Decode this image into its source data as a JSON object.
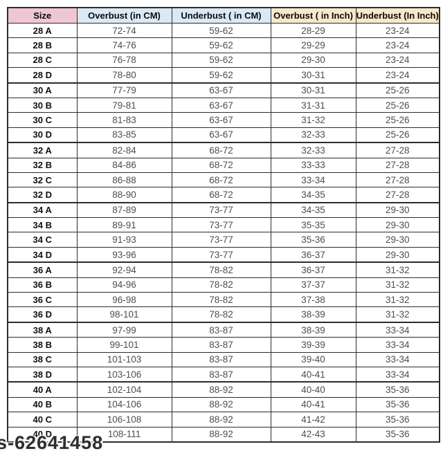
{
  "colors": {
    "header_size_bg": "#efc7d3",
    "header_cm_bg": "#dbe9f5",
    "header_inch_bg": "#f6e8ca",
    "border": "#2b2b2b",
    "data_text": "#4d4d4d"
  },
  "watermark": {
    "text": "s-62641458"
  },
  "chart_data": {
    "type": "table",
    "columns": [
      "Size",
      "Overbust (in CM)",
      "Underbust ( in CM)",
      "Overbust ( in Inch)",
      "Underbust (In Inch)"
    ],
    "rows": [
      [
        "28 A",
        "72-74",
        "59-62",
        "28-29",
        "23-24"
      ],
      [
        "28 B",
        "74-76",
        "59-62",
        "29-29",
        "23-24"
      ],
      [
        "28 C",
        "76-78",
        "59-62",
        "29-30",
        "23-24"
      ],
      [
        "28 D",
        "78-80",
        "59-62",
        "30-31",
        "23-24"
      ],
      [
        "30 A",
        "77-79",
        "63-67",
        "30-31",
        "25-26"
      ],
      [
        "30 B",
        "79-81",
        "63-67",
        "31-31",
        "25-26"
      ],
      [
        "30 C",
        "81-83",
        "63-67",
        "31-32",
        "25-26"
      ],
      [
        "30 D",
        "83-85",
        "63-67",
        "32-33",
        "25-26"
      ],
      [
        "32 A",
        "82-84",
        "68-72",
        "32-33",
        "27-28"
      ],
      [
        "32 B",
        "84-86",
        "68-72",
        "33-33",
        "27-28"
      ],
      [
        "32 C",
        "86-88",
        "68-72",
        "33-34",
        "27-28"
      ],
      [
        "32 D",
        "88-90",
        "68-72",
        "34-35",
        "27-28"
      ],
      [
        "34 A",
        "87-89",
        "73-77",
        "34-35",
        "29-30"
      ],
      [
        "34 B",
        "89-91",
        "73-77",
        "35-35",
        "29-30"
      ],
      [
        "34 C",
        "91-93",
        "73-77",
        "35-36",
        "29-30"
      ],
      [
        "34 D",
        "93-96",
        "73-77",
        "36-37",
        "29-30"
      ],
      [
        "36 A",
        "92-94",
        "78-82",
        "36-37",
        "31-32"
      ],
      [
        "36 B",
        "94-96",
        "78-82",
        "37-37",
        "31-32"
      ],
      [
        "36 C",
        "96-98",
        "78-82",
        "37-38",
        "31-32"
      ],
      [
        "36 D",
        "98-101",
        "78-82",
        "38-39",
        "31-32"
      ],
      [
        "38 A",
        "97-99",
        "83-87",
        "38-39",
        "33-34"
      ],
      [
        "38 B",
        "99-101",
        "83-87",
        "39-39",
        "33-34"
      ],
      [
        "38 C",
        "101-103",
        "83-87",
        "39-40",
        "33-34"
      ],
      [
        "38 D",
        "103-106",
        "83-87",
        "40-41",
        "33-34"
      ],
      [
        "40 A",
        "102-104",
        "88-92",
        "40-40",
        "35-36"
      ],
      [
        "40 B",
        "104-106",
        "88-92",
        "40-41",
        "35-36"
      ],
      [
        "40 C",
        "106-108",
        "88-92",
        "41-42",
        "35-36"
      ],
      [
        "40 D",
        "108-111",
        "88-92",
        "42-43",
        "35-36"
      ]
    ]
  }
}
